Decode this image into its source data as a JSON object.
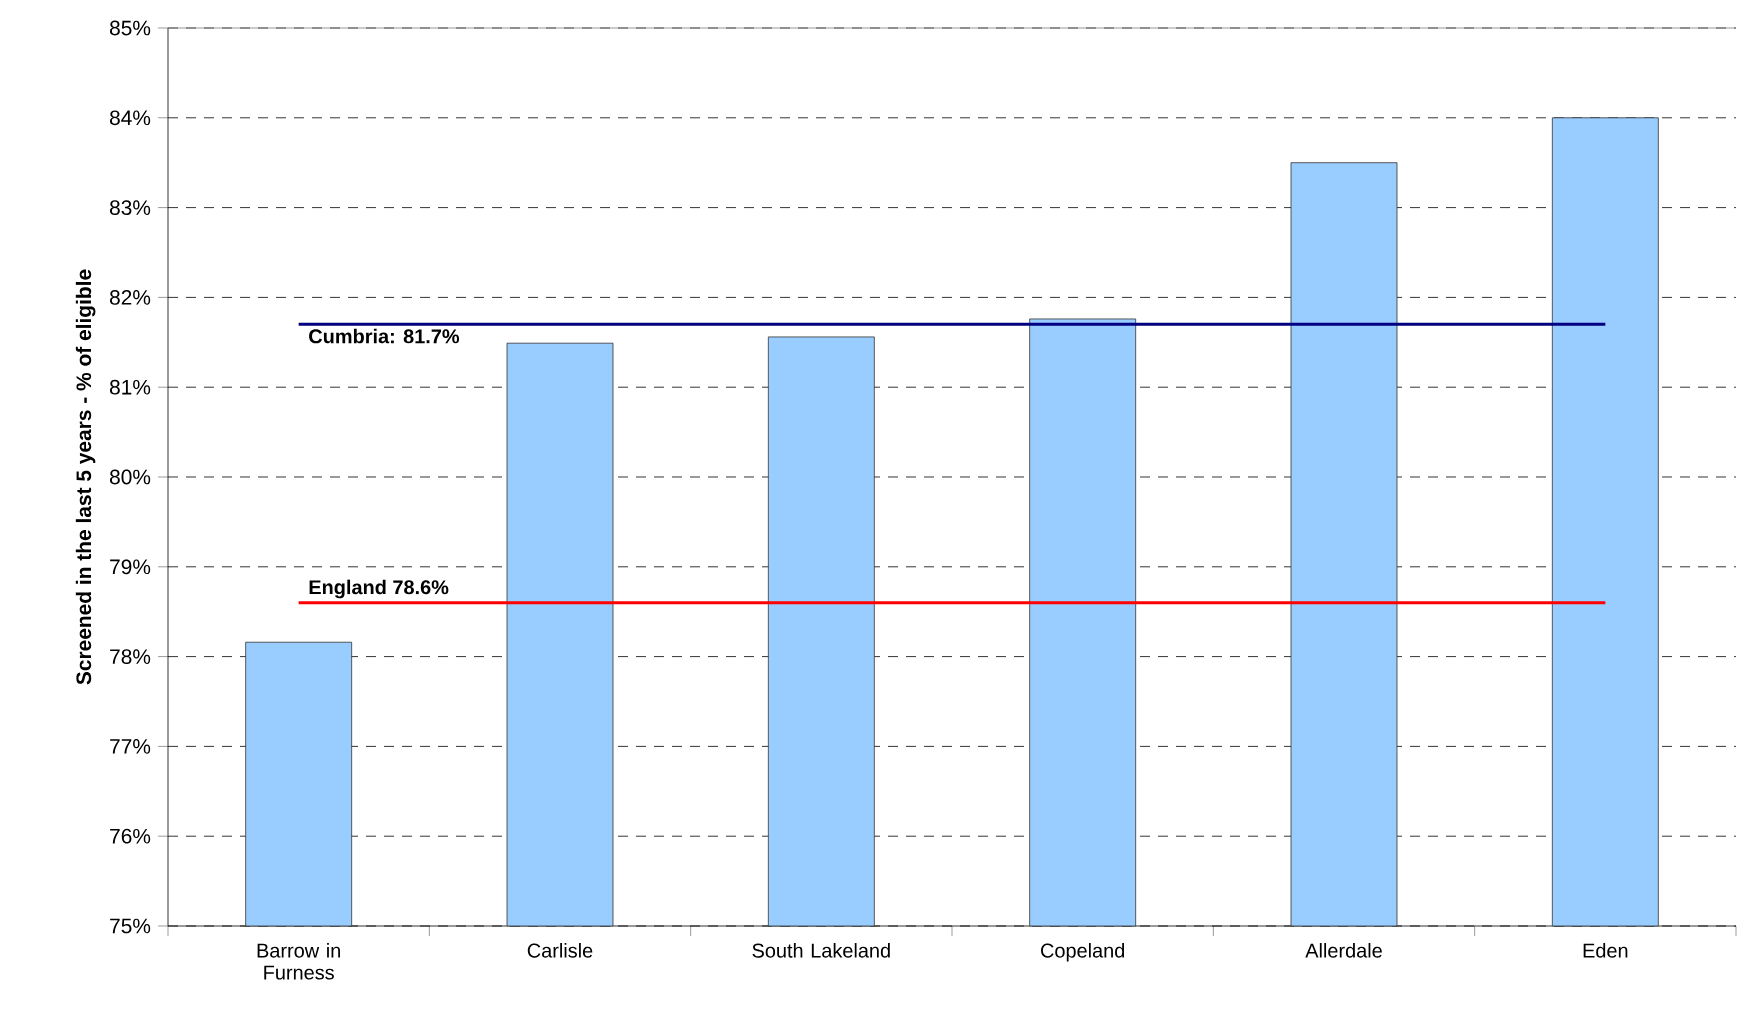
{
  "chart_data": {
    "type": "bar",
    "ylabel": "Screened in the last 5 years - % of eligible",
    "categories": [
      "Barrow in Furness",
      "Carlisle",
      "South Lakeland",
      "Copeland",
      "Allerdale",
      "Eden"
    ],
    "values": [
      78.16,
      81.49,
      81.56,
      81.76,
      83.5,
      84.0
    ],
    "color": "#99ccff",
    "ylim": [
      75,
      85
    ],
    "yticks": [
      {
        "value": 75,
        "label": "75%"
      },
      {
        "value": 76,
        "label": "76%"
      },
      {
        "value": 77,
        "label": "77%"
      },
      {
        "value": 78,
        "label": "78%"
      },
      {
        "value": 79,
        "label": "79%"
      },
      {
        "value": 80,
        "label": "80%"
      },
      {
        "value": 81,
        "label": "81%"
      },
      {
        "value": 82,
        "label": "82%"
      },
      {
        "value": 83,
        "label": "83%"
      },
      {
        "value": 84,
        "label": "84%"
      },
      {
        "value": 85,
        "label": "85%"
      }
    ],
    "grid": "y",
    "ref_lines": [
      {
        "axis": "y",
        "value": 81.7,
        "label": "Cumbria: 81.7%",
        "color": "#000080"
      },
      {
        "axis": "y",
        "value": 78.6,
        "label": "England 78.6%",
        "color": "#ff0000"
      }
    ]
  }
}
